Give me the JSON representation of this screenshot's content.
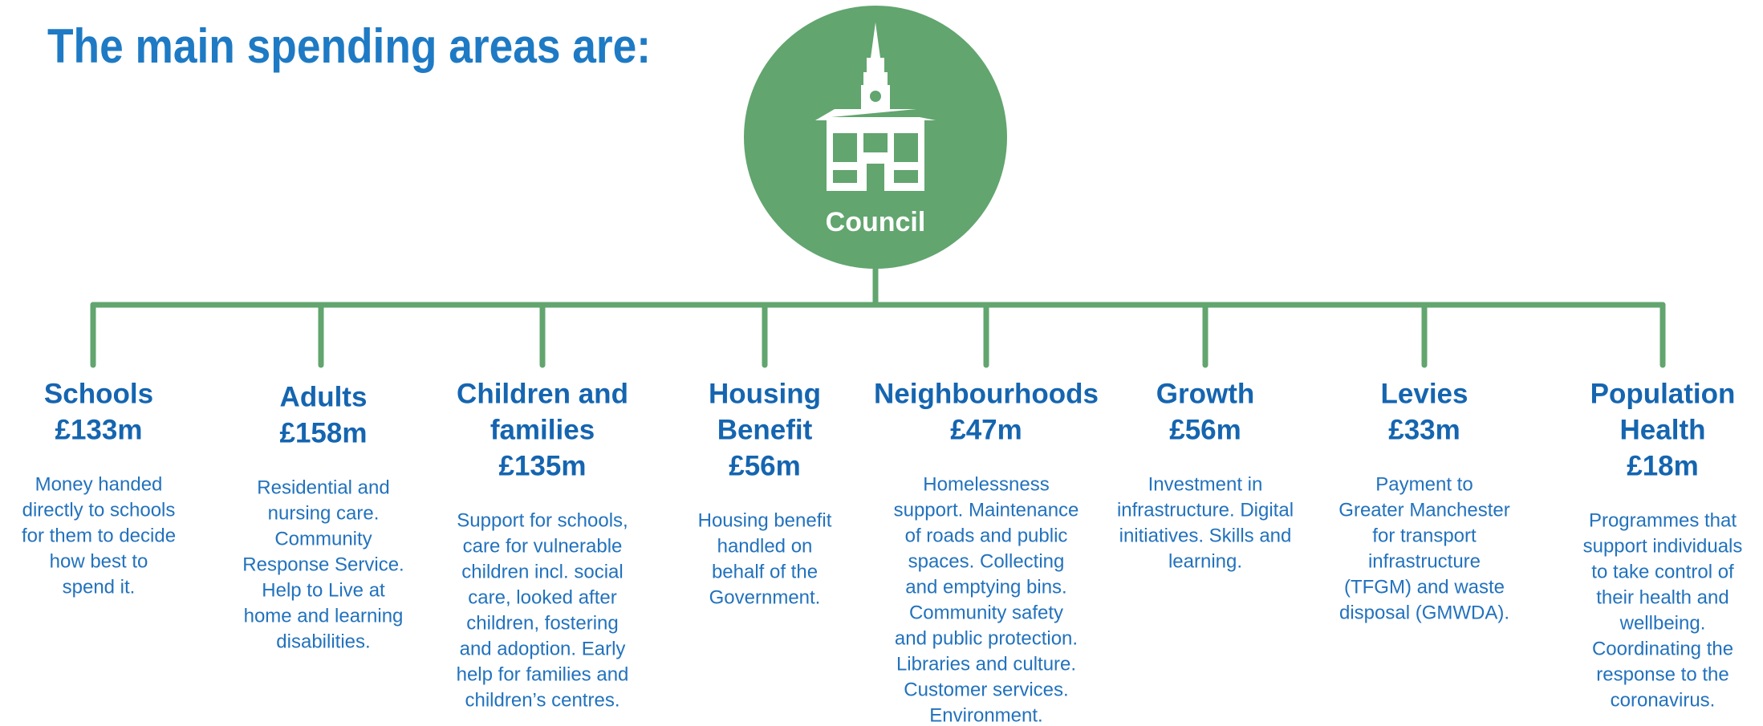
{
  "title": "The main spending areas are:",
  "center": {
    "label": "Council"
  },
  "areas": [
    {
      "name": [
        "Schools"
      ],
      "amount": "£133m",
      "description": [
        "Money handed",
        "directly to schools",
        "for them to decide",
        "how best to",
        "spend it."
      ]
    },
    {
      "name": [
        "Adults"
      ],
      "amount": "£158m",
      "description": [
        "Residential and",
        "nursing care.",
        "Community",
        "Response Service.",
        "Help to Live at",
        "home and learning",
        "disabilities."
      ]
    },
    {
      "name": [
        "Children and",
        "families"
      ],
      "amount": "£135m",
      "description": [
        "Support for schools,",
        "care for vulnerable",
        "children incl. social",
        "care, looked after",
        "children, fostering",
        "and adoption. Early",
        "help for families and",
        "children’s centres."
      ]
    },
    {
      "name": [
        "Housing",
        "Benefit"
      ],
      "amount": "£56m",
      "description": [
        "Housing benefit",
        "handled on",
        "behalf of the",
        "Government."
      ]
    },
    {
      "name": [
        "Neighbourhoods"
      ],
      "amount": "£47m",
      "description": [
        "Homelessness",
        "support. Maintenance",
        "of roads and public",
        "spaces. Collecting",
        "and emptying bins.",
        "Community safety",
        "and public protection.",
        "Libraries and culture.",
        "Customer services.",
        "Environment."
      ]
    },
    {
      "name": [
        "Growth"
      ],
      "amount": "£56m",
      "description": [
        "Investment in",
        "infrastructure. Digital",
        "initiatives. Skills and",
        "learning."
      ]
    },
    {
      "name": [
        "Levies"
      ],
      "amount": "£33m",
      "description": [
        "Payment to",
        "Greater Manchester",
        "for transport",
        "infrastructure",
        "(TFGM) and waste",
        "disposal (GMWDA)."
      ]
    },
    {
      "name": [
        "Population",
        "Health"
      ],
      "amount": "£18m",
      "description": [
        "Programmes that",
        "support individuals",
        "to take control of",
        "their health and",
        "wellbeing.",
        "Coordinating the",
        "response to the",
        "coronavirus."
      ]
    }
  ]
}
